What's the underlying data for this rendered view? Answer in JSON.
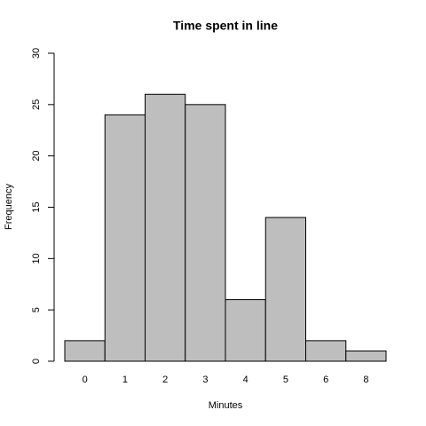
{
  "chart_data": {
    "type": "bar",
    "title": "Time spent in line",
    "x_label": "Minutes",
    "y_label": "Frequency",
    "categories": [
      "0",
      "1",
      "2",
      "3",
      "4",
      "5",
      "6",
      "8"
    ],
    "values": [
      2,
      24,
      26,
      25,
      6,
      14,
      2,
      1
    ],
    "color": "#bebebe",
    "ylim": [
      0,
      30
    ],
    "yticks": [
      0,
      5,
      10,
      15,
      20,
      25,
      30
    ]
  }
}
